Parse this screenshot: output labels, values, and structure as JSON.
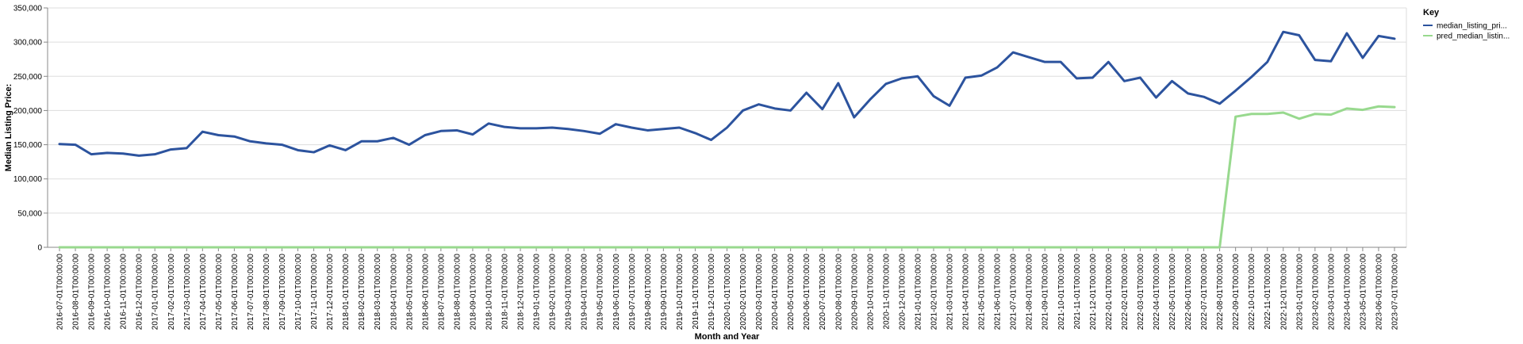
{
  "chart_data": {
    "type": "line",
    "xlabel": "Month and Year",
    "ylabel": "Median Listing Price:",
    "ylim": [
      0,
      350000
    ],
    "yticks": [
      "0",
      "50,000",
      "100,000",
      "150,000",
      "200,000",
      "250,000",
      "300,000",
      "350,000"
    ],
    "grid": true,
    "legend_position": "right",
    "legend_title": "Key",
    "categories": [
      "2016-07-01T00:00:00",
      "2016-08-01T00:00:00",
      "2016-09-01T00:00:00",
      "2016-10-01T00:00:00",
      "2016-11-01T00:00:00",
      "2016-12-01T00:00:00",
      "2017-01-01T00:00:00",
      "2017-02-01T00:00:00",
      "2017-03-01T00:00:00",
      "2017-04-01T00:00:00",
      "2017-05-01T00:00:00",
      "2017-06-01T00:00:00",
      "2017-07-01T00:00:00",
      "2017-08-01T00:00:00",
      "2017-09-01T00:00:00",
      "2017-10-01T00:00:00",
      "2017-11-01T00:00:00",
      "2017-12-01T00:00:00",
      "2018-01-01T00:00:00",
      "2018-02-01T00:00:00",
      "2018-03-01T00:00:00",
      "2018-04-01T00:00:00",
      "2018-05-01T00:00:00",
      "2018-06-01T00:00:00",
      "2018-07-01T00:00:00",
      "2018-08-01T00:00:00",
      "2018-09-01T00:00:00",
      "2018-10-01T00:00:00",
      "2018-11-01T00:00:00",
      "2018-12-01T00:00:00",
      "2019-01-01T00:00:00",
      "2019-02-01T00:00:00",
      "2019-03-01T00:00:00",
      "2019-04-01T00:00:00",
      "2019-05-01T00:00:00",
      "2019-06-01T00:00:00",
      "2019-07-01T00:00:00",
      "2019-08-01T00:00:00",
      "2019-09-01T00:00:00",
      "2019-10-01T00:00:00",
      "2019-11-01T00:00:00",
      "2019-12-01T00:00:00",
      "2020-01-01T00:00:00",
      "2020-02-01T00:00:00",
      "2020-03-01T00:00:00",
      "2020-04-01T00:00:00",
      "2020-05-01T00:00:00",
      "2020-06-01T00:00:00",
      "2020-07-01T00:00:00",
      "2020-08-01T00:00:00",
      "2020-09-01T00:00:00",
      "2020-10-01T00:00:00",
      "2020-11-01T00:00:00",
      "2020-12-01T00:00:00",
      "2021-01-01T00:00:00",
      "2021-02-01T00:00:00",
      "2021-03-01T00:00:00",
      "2021-04-01T00:00:00",
      "2021-05-01T00:00:00",
      "2021-06-01T00:00:00",
      "2021-07-01T00:00:00",
      "2021-08-01T00:00:00",
      "2021-09-01T00:00:00",
      "2021-10-01T00:00:00",
      "2021-11-01T00:00:00",
      "2021-12-01T00:00:00",
      "2022-01-01T00:00:00",
      "2022-02-01T00:00:00",
      "2022-03-01T00:00:00",
      "2022-04-01T00:00:00",
      "2022-05-01T00:00:00",
      "2022-06-01T00:00:00",
      "2022-07-01T00:00:00",
      "2022-08-01T00:00:00",
      "2022-09-01T00:00:00",
      "2022-10-01T00:00:00",
      "2022-11-01T00:00:00",
      "2022-12-01T00:00:00",
      "2023-01-01T00:00:00",
      "2023-02-01T00:00:00",
      "2023-03-01T00:00:00",
      "2023-04-01T00:00:00",
      "2023-05-01T00:00:00",
      "2023-06-01T00:00:00",
      "2023-07-01T00:00:00"
    ],
    "series": [
      {
        "name": "median_listing_pri...",
        "color": "#2c539e",
        "values": [
          151000,
          150000,
          136000,
          138000,
          137000,
          134000,
          136000,
          143000,
          145000,
          169000,
          164000,
          162000,
          155000,
          152000,
          150000,
          142000,
          139000,
          149000,
          142000,
          155000,
          155000,
          160000,
          150000,
          164000,
          170000,
          171000,
          165000,
          181000,
          176000,
          174000,
          174000,
          175000,
          173000,
          170000,
          166000,
          180000,
          175000,
          171000,
          173000,
          175000,
          167000,
          157000,
          175000,
          200000,
          209000,
          203000,
          200000,
          226000,
          202000,
          240000,
          190000,
          216000,
          239000,
          247000,
          250000,
          221000,
          207000,
          248000,
          251000,
          263000,
          285000,
          278000,
          271000,
          271000,
          247000,
          248000,
          271000,
          243000,
          248000,
          219000,
          243000,
          225000,
          220000,
          210000,
          229000,
          249000,
          271000,
          315000,
          310000,
          274000,
          272000,
          313000,
          277000,
          309000,
          305000
        ]
      },
      {
        "name": "pred_median_listin...",
        "color": "#98d98e",
        "values": [
          0,
          0,
          0,
          0,
          0,
          0,
          0,
          0,
          0,
          0,
          0,
          0,
          0,
          0,
          0,
          0,
          0,
          0,
          0,
          0,
          0,
          0,
          0,
          0,
          0,
          0,
          0,
          0,
          0,
          0,
          0,
          0,
          0,
          0,
          0,
          0,
          0,
          0,
          0,
          0,
          0,
          0,
          0,
          0,
          0,
          0,
          0,
          0,
          0,
          0,
          0,
          0,
          0,
          0,
          0,
          0,
          0,
          0,
          0,
          0,
          0,
          0,
          0,
          0,
          0,
          0,
          0,
          0,
          0,
          0,
          0,
          0,
          0,
          0,
          191000,
          195000,
          195000,
          197000,
          188000,
          195000,
          194000,
          203000,
          201000,
          206000,
          205000
        ]
      }
    ]
  }
}
